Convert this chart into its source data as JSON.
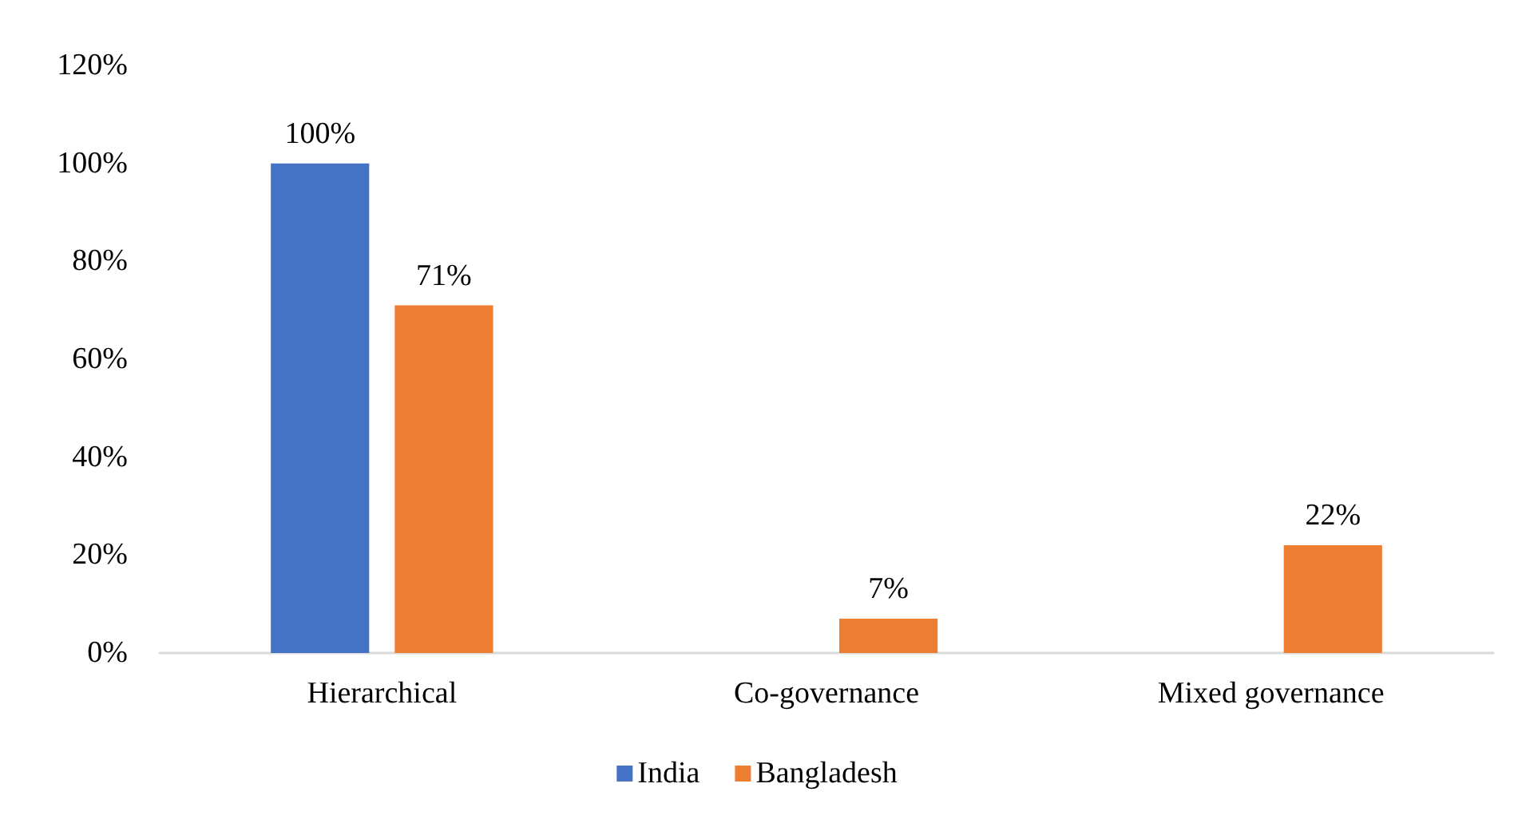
{
  "chart_data": {
    "type": "bar",
    "categories": [
      "Hierarchical",
      "Co-governance",
      "Mixed governance"
    ],
    "series": [
      {
        "name": "India",
        "color": "#4472c4",
        "values": [
          100,
          null,
          null
        ],
        "value_labels": [
          "100%",
          null,
          null
        ]
      },
      {
        "name": "Bangladesh",
        "color": "#ed7d31",
        "values": [
          71,
          7,
          22
        ],
        "value_labels": [
          "71%",
          "7%",
          "22%"
        ]
      }
    ],
    "ylim": [
      0,
      120
    ],
    "yticks": [
      {
        "value": 0,
        "label": "0%"
      },
      {
        "value": 20,
        "label": "20%"
      },
      {
        "value": 40,
        "label": "40%"
      },
      {
        "value": 60,
        "label": "60%"
      },
      {
        "value": 80,
        "label": "80%"
      },
      {
        "value": 100,
        "label": "100%"
      },
      {
        "value": 120,
        "label": "120%"
      }
    ],
    "grid": false,
    "legend": "bottom"
  }
}
